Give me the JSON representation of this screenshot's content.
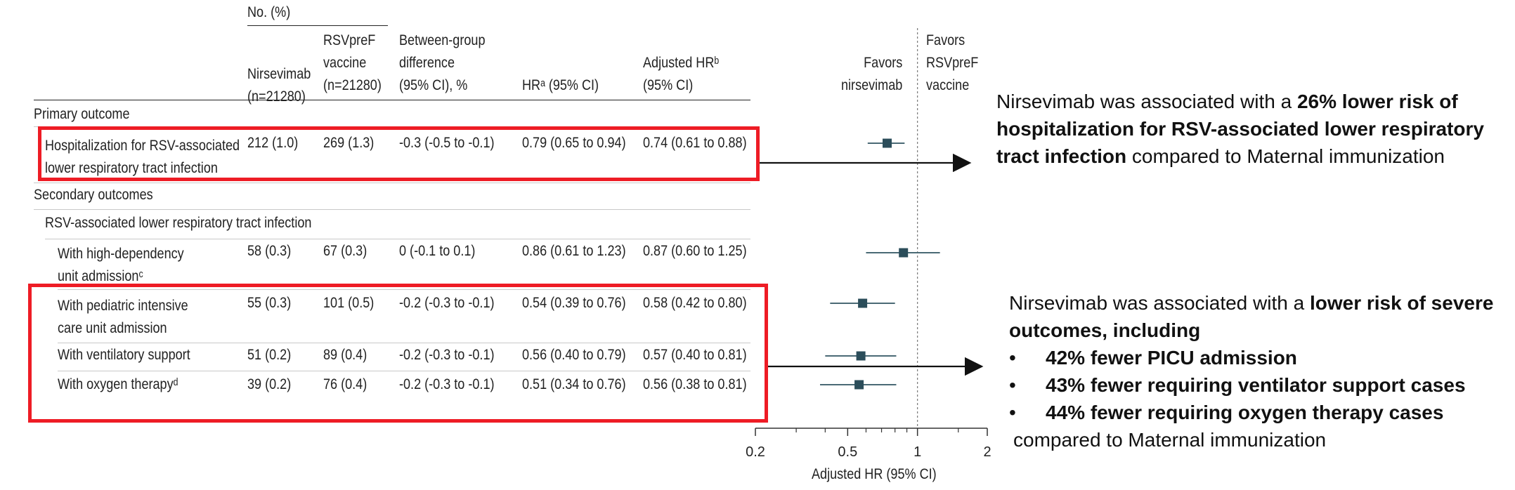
{
  "table": {
    "group_header": "No. (%)",
    "columns": {
      "nirs": [
        "Nirsevimab",
        "(n=21280)"
      ],
      "rsv": [
        "RSVpreF",
        "vaccine",
        "(n=21280)"
      ],
      "diff": [
        "Between-group",
        "difference",
        "(95% CI), %"
      ],
      "hr": "HRᵃ (95% CI)",
      "ahr": [
        "Adjusted HRᵇ",
        "(95% CI)"
      ]
    },
    "sections": {
      "primary": "Primary outcome",
      "secondary": "Secondary outcomes",
      "subgroup": "RSV-associated lower respiratory tract infection"
    },
    "rows": [
      {
        "label": [
          "Hospitalization for RSV-associated",
          "lower respiratory tract infection"
        ],
        "nirs": "212 (1.0)",
        "rsv": "269 (1.3)",
        "diff": "-0.3 (-0.5 to -0.1)",
        "hr": "0.79 (0.65 to 0.94)",
        "ahr": "0.74 (0.61 to 0.88)"
      },
      {
        "label": [
          "With high-dependency",
          "unit admissionᶜ"
        ],
        "nirs": "58 (0.3)",
        "rsv": "67 (0.3)",
        "diff": "0 (-0.1 to 0.1)",
        "hr": "0.86 (0.61 to 1.23)",
        "ahr": "0.87 (0.60 to 1.25)"
      },
      {
        "label": [
          "With pediatric intensive",
          "care unit admission"
        ],
        "nirs": "55 (0.3)",
        "rsv": "101 (0.5)",
        "diff": "-0.2 (-0.3 to -0.1)",
        "hr": "0.54 (0.39 to 0.76)",
        "ahr": "0.58 (0.42 to 0.80)"
      },
      {
        "label": [
          "With ventilatory support"
        ],
        "nirs": "51 (0.2)",
        "rsv": "89 (0.4)",
        "diff": "-0.2 (-0.3 to -0.1)",
        "hr": "0.56 (0.40 to 0.79)",
        "ahr": "0.57 (0.40 to 0.81)"
      },
      {
        "label": [
          "With oxygen therapyᵈ"
        ],
        "nirs": "39 (0.2)",
        "rsv": "76 (0.4)",
        "diff": "-0.2 (-0.3 to -0.1)",
        "hr": "0.51 (0.34 to 0.76)",
        "ahr": "0.56 (0.38 to 0.81)"
      }
    ]
  },
  "chart_data": {
    "type": "scatter",
    "subtype": "forest-plot",
    "title": "",
    "xlabel": "Adjusted HR (95% CI)",
    "ylabel": "",
    "xscale": "log",
    "xlim": [
      0.2,
      2
    ],
    "xticks": [
      "0.2",
      "0.5",
      "1",
      "2"
    ],
    "reference_line": 1,
    "favors_left": [
      "Favors",
      "nirsevimab"
    ],
    "favors_right": [
      "Favors",
      "RSVpreF",
      "vaccine"
    ],
    "categories": [
      "Hospitalization for RSV-associated lower respiratory tract infection",
      "With high-dependency unit admission",
      "With pediatric intensive care unit admission",
      "With ventilatory support",
      "With oxygen therapy"
    ],
    "series": [
      {
        "estimate": [
          0.74,
          0.87,
          0.58,
          0.57,
          0.56
        ],
        "ci_low": [
          0.61,
          0.6,
          0.42,
          0.4,
          0.38
        ],
        "ci_high": [
          0.88,
          1.25,
          0.8,
          0.81,
          0.81
        ]
      }
    ],
    "marker_color": "#2b4d5a"
  },
  "annotations": {
    "primary_note": {
      "pre": "Nirsevimab was associated with a ",
      "bold": "26% lower risk of hospitalization for RSV-associated lower respiratory tract infection",
      "post": " compared to Maternal immunization"
    },
    "secondary_note": {
      "pre": "Nirsevimab was associated with a ",
      "bold": "lower risk of severe outcomes, including",
      "bullets": [
        "42% fewer PICU admission",
        "43% fewer requiring ventilator support cases",
        "44% fewer requiring oxygen therapy cases"
      ],
      "post": "compared to Maternal immunization"
    }
  },
  "colors": {
    "highlight_box": "#ee1c25",
    "marker": "#2b4d5a"
  }
}
